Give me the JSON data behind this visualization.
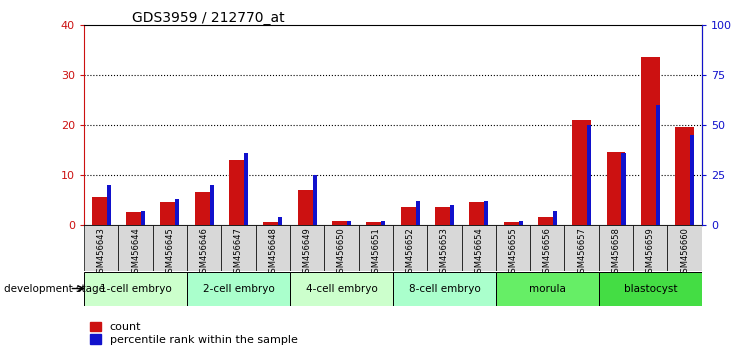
{
  "title": "GDS3959 / 212770_at",
  "samples": [
    "GSM456643",
    "GSM456644",
    "GSM456645",
    "GSM456646",
    "GSM456647",
    "GSM456648",
    "GSM456649",
    "GSM456650",
    "GSM456651",
    "GSM456652",
    "GSM456653",
    "GSM456654",
    "GSM456655",
    "GSM456656",
    "GSM456657",
    "GSM456658",
    "GSM456659",
    "GSM456660"
  ],
  "count": [
    5.5,
    2.5,
    4.5,
    6.5,
    13.0,
    0.5,
    7.0,
    0.8,
    0.5,
    3.5,
    3.5,
    4.5,
    0.5,
    1.5,
    21.0,
    14.5,
    33.5,
    19.5
  ],
  "percentile": [
    20,
    7,
    13,
    20,
    36,
    4,
    25,
    2,
    2,
    12,
    10,
    12,
    2,
    7,
    50,
    36,
    60,
    45
  ],
  "stages": [
    {
      "label": "1-cell embryo",
      "start": 0,
      "end": 3
    },
    {
      "label": "2-cell embryo",
      "start": 3,
      "end": 6
    },
    {
      "label": "4-cell embryo",
      "start": 6,
      "end": 9
    },
    {
      "label": "8-cell embryo",
      "start": 9,
      "end": 12
    },
    {
      "label": "morula",
      "start": 12,
      "end": 15
    },
    {
      "label": "blastocyst",
      "start": 15,
      "end": 18
    }
  ],
  "stage_colors": [
    "#ccffcc",
    "#aaffcc",
    "#ccffcc",
    "#aaffcc",
    "#66ee66",
    "#44dd44"
  ],
  "red_bar_width": 0.55,
  "blue_bar_width": 0.12,
  "red_color": "#cc1111",
  "blue_color": "#1111cc",
  "ylim_left": [
    0,
    40
  ],
  "ylim_right": [
    0,
    100
  ],
  "yticks_left": [
    0,
    10,
    20,
    30,
    40
  ],
  "yticks_right": [
    0,
    25,
    50,
    75,
    100
  ],
  "yticklabels_right": [
    "0",
    "25",
    "50",
    "75",
    "100%"
  ],
  "background_color": "#ffffff",
  "legend_count": "count",
  "legend_pct": "percentile rank within the sample",
  "stage_label": "development stage",
  "sample_bg_color": "#d8d8d8",
  "plot_bg": "#ffffff"
}
